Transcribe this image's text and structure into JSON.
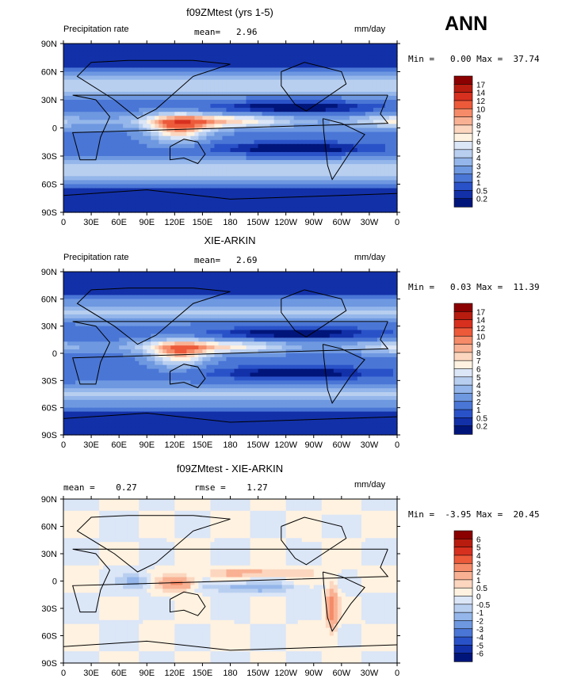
{
  "season": "ANN",
  "panels": [
    {
      "title": "f09ZMtest (yrs 1-5)",
      "left_label": "Precipitation rate",
      "center_label": "mean=   2.96",
      "units": "mm/day",
      "minmax": "Min =   0.00 Max =  37.74",
      "levels": [
        "17",
        "14",
        "12",
        "10",
        "9",
        "8",
        "7",
        "6",
        "5",
        "4",
        "3",
        "2",
        "1",
        "0.5",
        "0.2"
      ],
      "palette": [
        "#8b0000",
        "#b71c0f",
        "#d7301f",
        "#ec5a3a",
        "#f58b68",
        "#f9b193",
        "#fcd6bf",
        "#fff2e0",
        "#dbe6f7",
        "#b8cff0",
        "#94b6ea",
        "#6e98e0",
        "#4a76d6",
        "#2a52c8",
        "#1230a8",
        "#00157a"
      ]
    },
    {
      "title": "XIE-ARKIN",
      "left_label": "Precipitation rate",
      "center_label": "mean=   2.69",
      "units": "mm/day",
      "minmax": "Min =   0.03 Max =  11.39",
      "levels": [
        "17",
        "14",
        "12",
        "10",
        "9",
        "8",
        "7",
        "6",
        "5",
        "4",
        "3",
        "2",
        "1",
        "0.5",
        "0.2"
      ],
      "palette": [
        "#8b0000",
        "#b71c0f",
        "#d7301f",
        "#ec5a3a",
        "#f58b68",
        "#f9b193",
        "#fcd6bf",
        "#fff2e0",
        "#dbe6f7",
        "#b8cff0",
        "#94b6ea",
        "#6e98e0",
        "#4a76d6",
        "#2a52c8",
        "#1230a8",
        "#00157a"
      ]
    },
    {
      "title": "f09ZMtest - XIE-ARKIN",
      "left_label": "mean =    0.27",
      "center_label": "rmse =    1.27",
      "units": "mm/day",
      "minmax": "Min =  -3.95 Max =  20.45",
      "levels": [
        "6",
        "5",
        "4",
        "3",
        "2",
        "1",
        "0.5",
        "0",
        "-0.5",
        "-1",
        "-2",
        "-3",
        "-4",
        "-5",
        "-6"
      ],
      "palette": [
        "#8b0000",
        "#b71c0f",
        "#d7301f",
        "#ec5a3a",
        "#f58b68",
        "#f9b193",
        "#fcd6bf",
        "#fff2e0",
        "#dbe6f7",
        "#b8cff0",
        "#94b6ea",
        "#6e98e0",
        "#4a76d6",
        "#2a52c8",
        "#1230a8",
        "#00157a"
      ]
    }
  ],
  "chart_data": [
    {
      "type": "heatmap",
      "title": "f09ZMtest (yrs 1-5)",
      "variable": "Precipitation rate",
      "units": "mm/day",
      "mean": 2.96,
      "min": 0.0,
      "max": 37.74,
      "x_ticks": [
        "0",
        "30E",
        "60E",
        "90E",
        "120E",
        "150E",
        "180",
        "150W",
        "120W",
        "90W",
        "60W",
        "30W",
        "0"
      ],
      "y_ticks": [
        "90N",
        "60N",
        "30N",
        "0",
        "30S",
        "60S",
        "90S"
      ],
      "contour_levels": [
        0.2,
        0.5,
        1,
        2,
        3,
        4,
        5,
        6,
        7,
        8,
        9,
        10,
        12,
        14,
        17
      ]
    },
    {
      "type": "heatmap",
      "title": "XIE-ARKIN",
      "variable": "Precipitation rate",
      "units": "mm/day",
      "mean": 2.69,
      "min": 0.03,
      "max": 11.39,
      "x_ticks": [
        "0",
        "30E",
        "60E",
        "90E",
        "120E",
        "150E",
        "180",
        "150W",
        "120W",
        "90W",
        "60W",
        "30W",
        "0"
      ],
      "y_ticks": [
        "90N",
        "60N",
        "30N",
        "0",
        "30S",
        "60S",
        "90S"
      ],
      "contour_levels": [
        0.2,
        0.5,
        1,
        2,
        3,
        4,
        5,
        6,
        7,
        8,
        9,
        10,
        12,
        14,
        17
      ]
    },
    {
      "type": "heatmap",
      "title": "f09ZMtest - XIE-ARKIN",
      "units": "mm/day",
      "mean": 0.27,
      "rmse": 1.27,
      "min": -3.95,
      "max": 20.45,
      "x_ticks": [
        "0",
        "30E",
        "60E",
        "90E",
        "120E",
        "150E",
        "180",
        "150W",
        "120W",
        "90W",
        "60W",
        "30W",
        "0"
      ],
      "y_ticks": [
        "90N",
        "60N",
        "30N",
        "0",
        "30S",
        "60S",
        "90S"
      ],
      "contour_levels": [
        -6,
        -5,
        -4,
        -3,
        -2,
        -1,
        -0.5,
        0,
        0.5,
        1,
        2,
        3,
        4,
        5,
        6
      ]
    }
  ]
}
